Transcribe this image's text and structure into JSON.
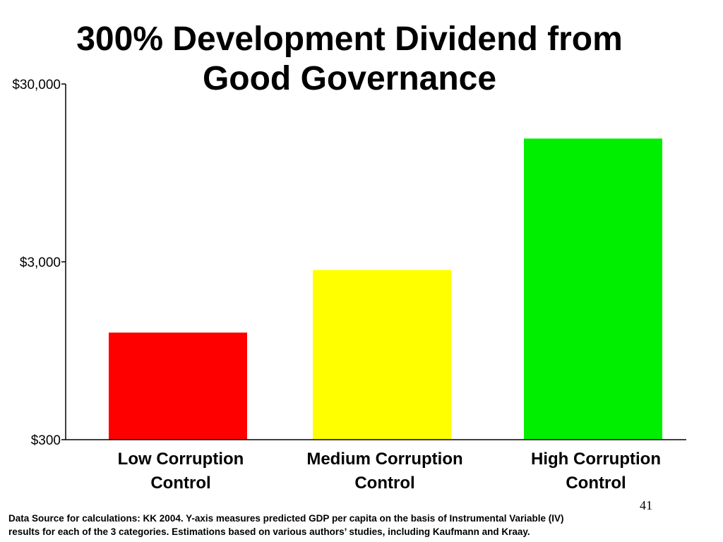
{
  "slide": {
    "title_line1": "300% Development Dividend from",
    "title_line2": "Good Governance",
    "page_number": "41",
    "footnote_line1": "Data Source for calculations: KK 2004.  Y-axis measures predicted GDP per capita on the basis of Instrumental Variable (IV)",
    "footnote_line2": "results for each of the 3 categories.  Estimations based on various authors’ studies, including Kaufmann and Kraay."
  },
  "chart_data": {
    "type": "bar",
    "title": "300% Development Dividend from Good Governance",
    "xlabel": "",
    "ylabel": "",
    "y_scale": "log",
    "ylim": [
      300,
      30000
    ],
    "y_ticks": [
      300,
      3000,
      30000
    ],
    "y_tick_labels": [
      "$300",
      "$3,000",
      "$30,000"
    ],
    "categories": [
      "Low Corruption Control",
      "Medium Corruption Control",
      "High Corruption Control"
    ],
    "category_label_lines": [
      [
        "Low Corruption",
        "Control"
      ],
      [
        "Medium Corruption",
        "Control"
      ],
      [
        "High Corruption",
        "Control"
      ]
    ],
    "values": [
      1200,
      2700,
      14800
    ],
    "colors": [
      "#ff0000",
      "#ffff00",
      "#00ee00"
    ],
    "grid": false,
    "legend": "none"
  }
}
